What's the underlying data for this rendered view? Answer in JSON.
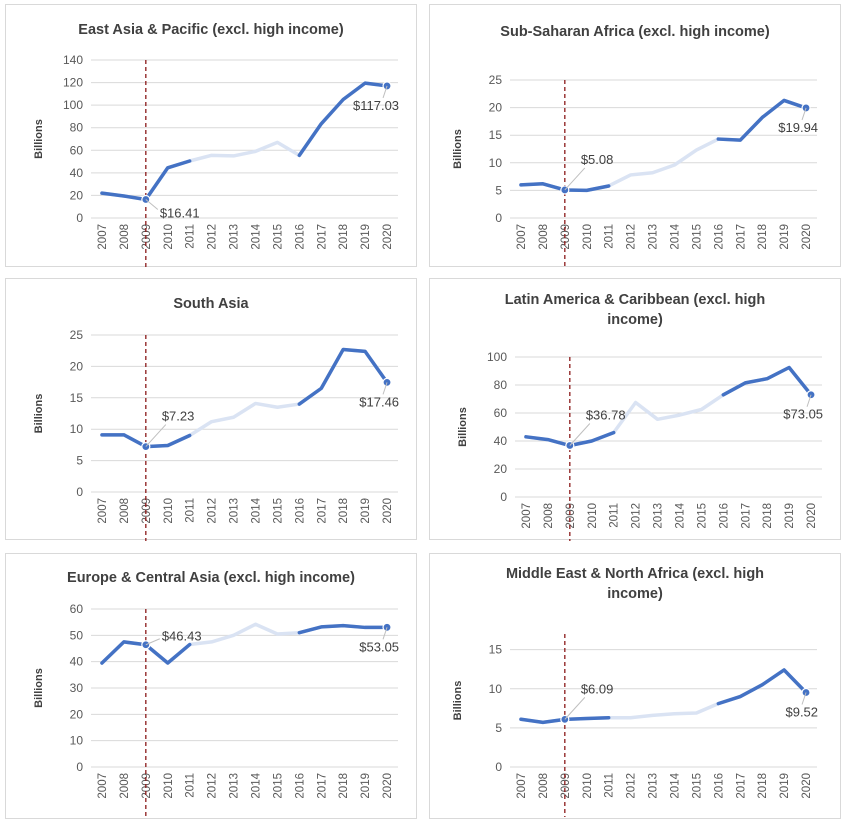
{
  "colors": {
    "line_dark": "#4472c4",
    "line_light": "#dae3f3",
    "marker_line": "#8b1a1a",
    "grid": "#d9d9d9",
    "text": "#404040"
  },
  "chart_data": [
    {
      "type": "line",
      "title": "East Asia & Pacific (excl. high income)",
      "ylabel": "Billions",
      "ylim": [
        0,
        140
      ],
      "yticks": [
        0,
        20,
        40,
        60,
        80,
        100,
        120,
        140
      ],
      "x": [
        "2007",
        "2008",
        "2009",
        "2010",
        "2011",
        "2012",
        "2013",
        "2014",
        "2015",
        "2016",
        "2017",
        "2018",
        "2019",
        "2020"
      ],
      "values": [
        22,
        19.5,
        16.41,
        44.5,
        50.5,
        55.5,
        55,
        59,
        67,
        55.5,
        83.5,
        105,
        119.5,
        117.03
      ],
      "highlight_segments": [
        [
          0,
          4
        ],
        [
          9,
          13
        ]
      ],
      "reference_year": "2009",
      "annotations": [
        {
          "x": "2009",
          "text": "$16.41",
          "pos": "below"
        },
        {
          "x": "2020",
          "text": "$117.03",
          "pos": "below-left"
        }
      ]
    },
    {
      "type": "line",
      "title": "Sub-Saharan Africa (excl. high income)",
      "ylabel": "Billions",
      "ylim": [
        0,
        25
      ],
      "yticks": [
        0,
        5,
        10,
        15,
        20,
        25
      ],
      "x": [
        "2007",
        "2008",
        "2009",
        "2010",
        "2011",
        "2012",
        "2013",
        "2014",
        "2015",
        "2016",
        "2017",
        "2018",
        "2019",
        "2020"
      ],
      "values": [
        6,
        6.2,
        5.08,
        5,
        5.8,
        7.8,
        8.2,
        9.6,
        12.3,
        14.3,
        14.1,
        18.2,
        21.3,
        19.94
      ],
      "highlight_segments": [
        [
          0,
          4
        ],
        [
          9,
          13
        ]
      ],
      "reference_year": "2009",
      "annotations": [
        {
          "x": "2009",
          "text": "$5.08",
          "pos": "above-right"
        },
        {
          "x": "2020",
          "text": "$19.94",
          "pos": "below-left"
        }
      ]
    },
    {
      "type": "line",
      "title": "South Asia",
      "ylabel": "Billions",
      "ylim": [
        0,
        25
      ],
      "yticks": [
        0,
        5,
        10,
        15,
        20,
        25
      ],
      "x": [
        "2007",
        "2008",
        "2009",
        "2010",
        "2011",
        "2012",
        "2013",
        "2014",
        "2015",
        "2016",
        "2017",
        "2018",
        "2019",
        "2020"
      ],
      "values": [
        9.1,
        9.1,
        7.23,
        7.4,
        9,
        11.2,
        11.9,
        14.1,
        13.5,
        14,
        16.5,
        22.7,
        22.4,
        17.46
      ],
      "highlight_segments": [
        [
          0,
          4
        ],
        [
          9,
          13
        ]
      ],
      "reference_year": "2009",
      "annotations": [
        {
          "x": "2009",
          "text": "$7.23",
          "pos": "above-right"
        },
        {
          "x": "2020",
          "text": "$17.46",
          "pos": "below-left"
        }
      ]
    },
    {
      "type": "line",
      "title": "Latin America & Caribbean (excl. high income)",
      "ylabel": "Billions",
      "ylim": [
        0,
        100
      ],
      "yticks": [
        0,
        20,
        40,
        60,
        80,
        100
      ],
      "x": [
        "2007",
        "2008",
        "2009",
        "2010",
        "2011",
        "2012",
        "2013",
        "2014",
        "2015",
        "2016",
        "2017",
        "2018",
        "2019",
        "2020"
      ],
      "values": [
        43,
        41,
        36.78,
        40,
        46,
        67.5,
        55.5,
        58.5,
        62.5,
        73,
        81.5,
        84.5,
        92.5,
        73.05
      ],
      "highlight_segments": [
        [
          0,
          4
        ],
        [
          9,
          13
        ]
      ],
      "reference_year": "2009",
      "annotations": [
        {
          "x": "2009",
          "text": "$36.78",
          "pos": "above-right"
        },
        {
          "x": "2020",
          "text": "$73.05",
          "pos": "below-left"
        }
      ]
    },
    {
      "type": "line",
      "title": "Europe & Central Asia (excl. high income)",
      "ylabel": "Billions",
      "ylim": [
        0,
        60
      ],
      "yticks": [
        0,
        10,
        20,
        30,
        40,
        50,
        60
      ],
      "x": [
        "2007",
        "2008",
        "2009",
        "2010",
        "2011",
        "2012",
        "2013",
        "2014",
        "2015",
        "2016",
        "2017",
        "2018",
        "2019",
        "2020"
      ],
      "values": [
        39.5,
        47.5,
        46.43,
        39.5,
        46.5,
        47.5,
        50,
        54.2,
        50.5,
        51,
        53.2,
        53.7,
        53,
        53.05
      ],
      "highlight_segments": [
        [
          0,
          4
        ],
        [
          9,
          13
        ]
      ],
      "reference_year": "2009",
      "annotations": [
        {
          "x": "2009",
          "text": "$46.43",
          "pos": "right"
        },
        {
          "x": "2020",
          "text": "$53.05",
          "pos": "below-left"
        }
      ]
    },
    {
      "type": "line",
      "title": "Middle East & North Africa (excl. high income)",
      "ylabel": "Billions",
      "ylim": [
        0,
        17
      ],
      "yticks": [
        0,
        5,
        10,
        15
      ],
      "x": [
        "2007",
        "2008",
        "2009",
        "2010",
        "2011",
        "2012",
        "2013",
        "2014",
        "2015",
        "2016",
        "2017",
        "2018",
        "2019",
        "2020"
      ],
      "values": [
        6.1,
        5.7,
        6.09,
        6.2,
        6.3,
        6.3,
        6.6,
        6.8,
        6.9,
        8.1,
        9,
        10.5,
        12.4,
        9.52
      ],
      "highlight_segments": [
        [
          0,
          4
        ],
        [
          9,
          13
        ]
      ],
      "reference_year": "2009",
      "annotations": [
        {
          "x": "2009",
          "text": "$6.09",
          "pos": "above-right"
        },
        {
          "x": "2020",
          "text": "$9.52",
          "pos": "below-left"
        }
      ]
    }
  ]
}
